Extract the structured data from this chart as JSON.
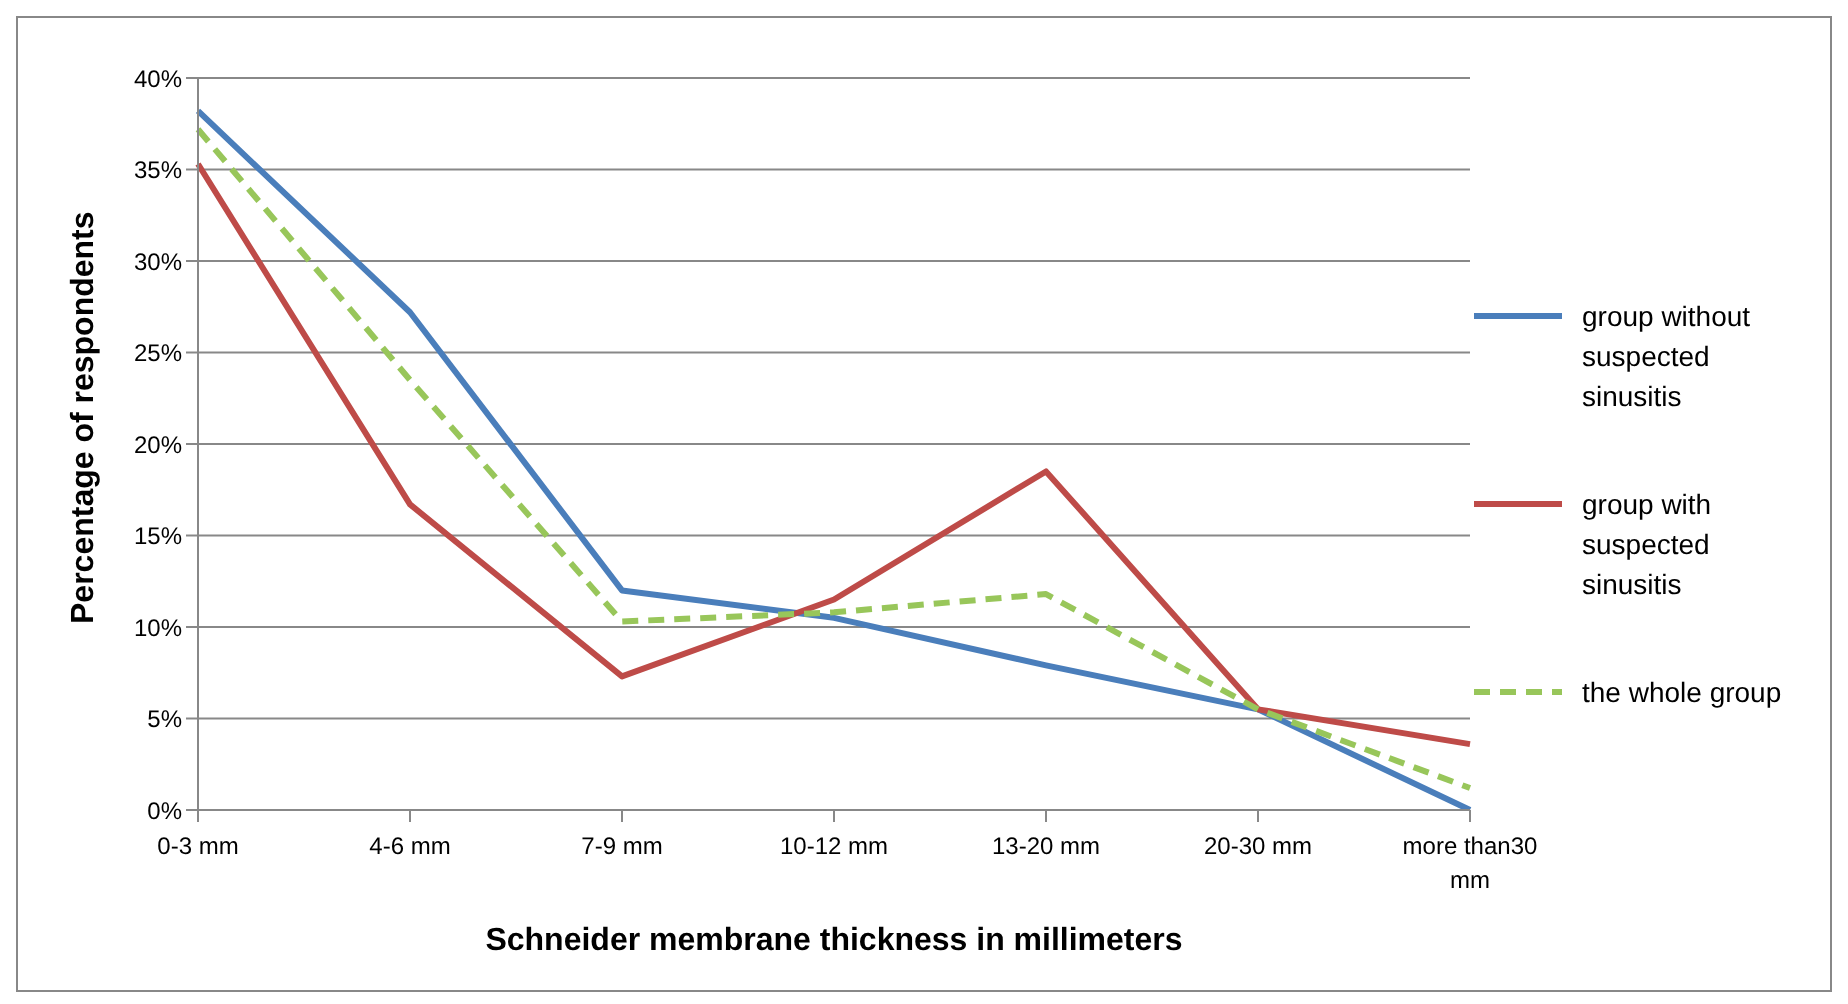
{
  "chart_data": {
    "type": "line",
    "xlabel": "Schneider membrane thickness in millimeters",
    "ylabel": "Percentage of respondents",
    "categories": [
      "0-3 mm",
      "4-6 mm",
      "7-9 mm",
      "10-12 mm",
      "13-20 mm",
      "20-30 mm",
      "more than30 mm"
    ],
    "series": [
      {
        "name": "group without suspected sinusitis",
        "color": "#4a7ebb",
        "values": [
          38.2,
          27.2,
          12.0,
          10.5,
          7.9,
          5.5,
          0
        ]
      },
      {
        "name": "group with suspected sinusitis",
        "color": "#be4b48",
        "values": [
          35.3,
          16.7,
          7.3,
          11.5,
          18.5,
          5.5,
          3.6
        ]
      },
      {
        "name": "the whole group",
        "color": "#98c65a",
        "line_style": "dashed",
        "values": [
          37.2,
          23.5,
          10.3,
          10.8,
          11.8,
          5.5,
          1.2
        ]
      }
    ],
    "ylim": [
      0,
      40
    ],
    "yticks": [
      {
        "value": 0,
        "label": "0%"
      },
      {
        "value": 5,
        "label": "5%"
      },
      {
        "value": 10,
        "label": "10%"
      },
      {
        "value": 15,
        "label": "15%"
      },
      {
        "value": 20,
        "label": "20%"
      },
      {
        "value": 25,
        "label": "25%"
      },
      {
        "value": 30,
        "label": "30%"
      },
      {
        "value": 35,
        "label": "35%"
      },
      {
        "value": 40,
        "label": "40%"
      }
    ],
    "grid": "y",
    "legend": "right",
    "marker": "none",
    "line_style": "solid"
  }
}
